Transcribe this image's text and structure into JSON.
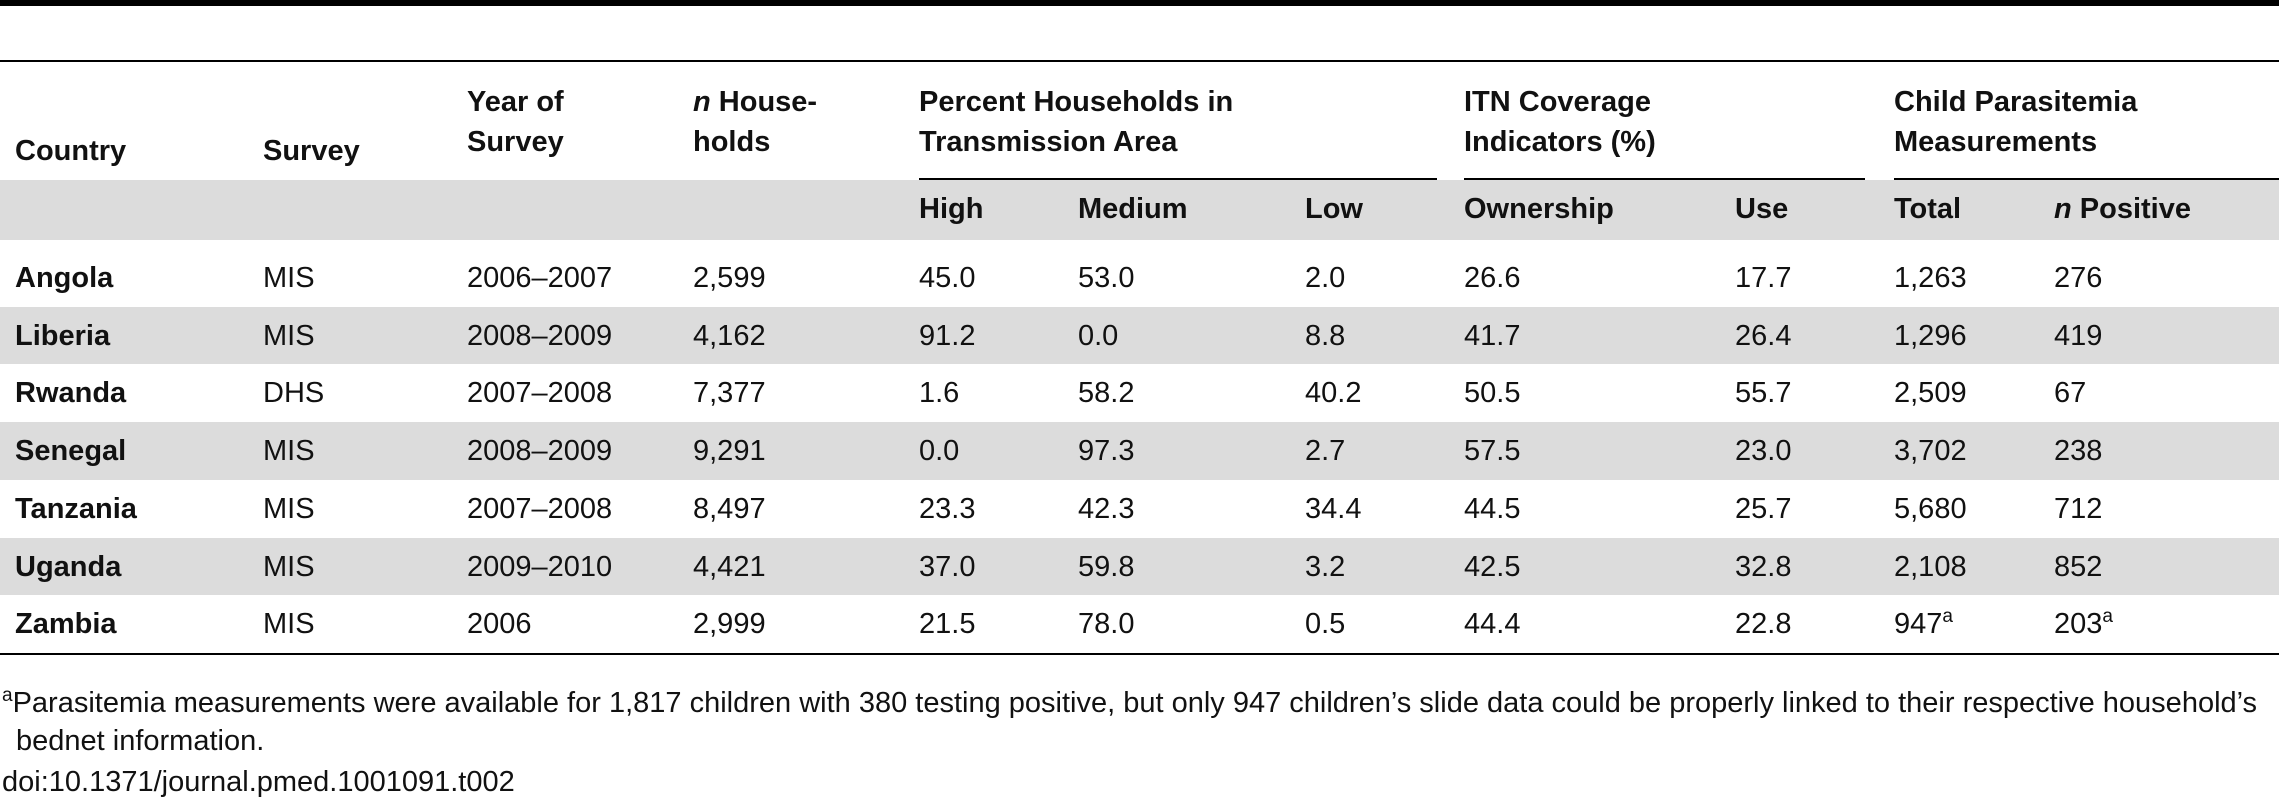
{
  "table": {
    "header": {
      "columns": [
        {
          "text": "Country"
        },
        {
          "text": "Survey"
        },
        {
          "text": "Year of Survey"
        },
        {
          "italic": "n",
          "lines": [
            "House-",
            "holds"
          ]
        }
      ],
      "groups": [
        {
          "text": "Percent Households in Transmission Area",
          "subs": [
            {
              "text": "High"
            },
            {
              "text": "Medium"
            },
            {
              "text": "Low"
            }
          ]
        },
        {
          "text": "ITN Coverage Indicators (%)",
          "subs": [
            {
              "text": "Ownership"
            },
            {
              "text": "Use"
            }
          ]
        },
        {
          "text": "Child Parasitemia Measurements",
          "subs": [
            {
              "text": "Total"
            },
            {
              "italic": "n",
              "text": "Positive"
            }
          ]
        }
      ]
    },
    "rows": [
      [
        "Angola",
        "MIS",
        "2006–2007",
        "2,599",
        "45.0",
        "53.0",
        "2.0",
        "26.6",
        "17.7",
        "1,263",
        "276"
      ],
      [
        "Liberia",
        "MIS",
        "2008–2009",
        "4,162",
        "91.2",
        "0.0",
        "8.8",
        "41.7",
        "26.4",
        "1,296",
        "419"
      ],
      [
        "Rwanda",
        "DHS",
        "2007–2008",
        "7,377",
        "1.6",
        "58.2",
        "40.2",
        "50.5",
        "55.7",
        "2,509",
        "67"
      ],
      [
        "Senegal",
        "MIS",
        "2008–2009",
        "9,291",
        "0.0",
        "97.3",
        "2.7",
        "57.5",
        "23.0",
        "3,702",
        "238"
      ],
      [
        "Tanzania",
        "MIS",
        "2007–2008",
        "8,497",
        "23.3",
        "42.3",
        "34.4",
        "44.5",
        "25.7",
        "5,680",
        "712"
      ],
      [
        "Uganda",
        "MIS",
        "2009–2010",
        "4,421",
        "37.0",
        "59.8",
        "3.2",
        "42.5",
        "32.8",
        "2,108",
        "852"
      ],
      [
        "Zambia",
        "MIS",
        "2006",
        "2,999",
        "21.5",
        "78.0",
        "0.5",
        "44.4",
        "22.8",
        {
          "text": "947",
          "note": "a"
        },
        {
          "text": "203",
          "note": "a"
        }
      ]
    ],
    "footnote": {
      "mark": "a",
      "text": "Parasitemia measurements were available for 1,817 children with 380 testing positive, but only 947 children’s slide data could be properly linked to their respective household’s bednet information."
    },
    "doi": "doi:10.1371/journal.pmed.1001091.t002"
  }
}
